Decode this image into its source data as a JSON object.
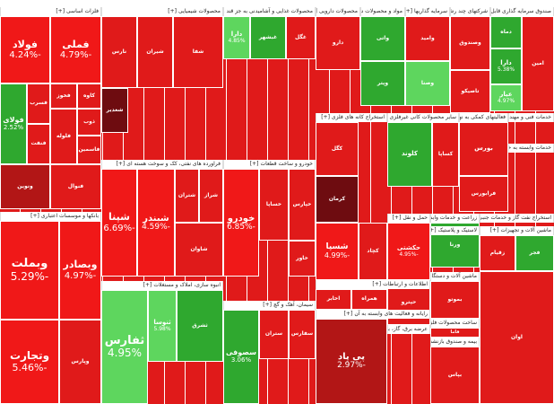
{
  "colors": {
    "strong_red": "#f01818",
    "red": "#e01a1a",
    "dark_red": "#b21616",
    "very_dark_red": "#6e0c10",
    "dark_green": "#1e6b1e",
    "green": "#2fa82f",
    "light_green": "#5ed65e"
  },
  "sectors": [
    {
      "name": "فلزات اساسی",
      "plus": "[+]"
    },
    {
      "name": "محصولات شیمیایی",
      "plus": "[+]"
    },
    {
      "name": "محصولات غذایی و آشامیدنی به جز قند و شکر",
      "plus": "[+]"
    },
    {
      "name": "محصولات دارویی",
      "plus": "[+]"
    },
    {
      "name": "مواد و محصولات دارویی",
      "plus": "[+]"
    },
    {
      "name": "سرمایه گذاریها",
      "plus": "[+]"
    },
    {
      "name": "شرکتهای چند رشته ای صنعتی",
      "plus": "[+]"
    },
    {
      "name": "صندوق سرمایه گذاری قابل معامله",
      "plus": "[+]"
    },
    {
      "name": "استخراج کانه های فلزی",
      "plus": "[+]"
    },
    {
      "name": "سایر محصولات کانی غیرفلزی",
      "plus": "[+]"
    },
    {
      "name": "فعالیتهای کمکی به نهادهای مالی واسط",
      "plus": "[+]"
    },
    {
      "name": "خدمات فنی و مهندسی",
      "plus": "[+]"
    },
    {
      "name": "خدمات وابسته به حمل و نقل",
      "plus": "[+]"
    },
    {
      "name": "فراورده های نفتی، کک و سوخت هسته ای",
      "plus": "[+]"
    },
    {
      "name": "خودرو و ساخت قطعات",
      "plus": "[+]"
    },
    {
      "name": "بانکها و موسسات اعتباری",
      "plus": "[+]"
    },
    {
      "name": "سیمان، آهک و گچ",
      "plus": "[+]"
    },
    {
      "name": "انبوه سازی، املاک و مستغلات",
      "plus": "[+]"
    },
    {
      "name": "زراعت و خدمات وابسته",
      "plus": "[+]"
    },
    {
      "name": "استخراج نفت گاز و خدمات جنبی",
      "plus": "[+]"
    },
    {
      "name": "ماشین آلات و تجهیزات",
      "plus": "[+]"
    },
    {
      "name": "لاستیک و پلاستیک",
      "plus": "[+]"
    },
    {
      "name": "ماشین آلات و دستگاه های برقی",
      "plus": "[+]"
    },
    {
      "name": "اطلاعات و ارتباطات",
      "plus": "[+]"
    },
    {
      "name": "حمل و نقل",
      "plus": "[+]"
    },
    {
      "name": "رایانه و فعالیت های وابسته به آن",
      "plus": "[+]"
    },
    {
      "name": "عرضه برق، گاز، بخار و آب گرم",
      "plus": "[+]"
    },
    {
      "name": "ساخت محصولات فلزی",
      "plus": "[+]"
    },
    {
      "name": "بیمه و صندوق بازنشستگی",
      "plus": "[+]"
    }
  ],
  "chart_data": {
    "type": "treemap",
    "title": "",
    "tiles": [
      {
        "symbol": "فولاد",
        "change": "-4.24%",
        "sector": "فلزات اساسی",
        "tone": "strong_red"
      },
      {
        "symbol": "فملی",
        "change": "-4.79%",
        "sector": "فلزات اساسی",
        "tone": "strong_red"
      },
      {
        "symbol": "فخوز",
        "change": "",
        "sector": "فلزات اساسی",
        "tone": "red"
      },
      {
        "symbol": "کاوه",
        "change": "",
        "sector": "فلزات اساسی",
        "tone": "red"
      },
      {
        "symbol": "فولای",
        "change": "2.52%",
        "sector": "فلزات اساسی",
        "tone": "green"
      },
      {
        "symbol": "فسرب",
        "change": "",
        "sector": "فلزات اساسی",
        "tone": "red"
      },
      {
        "symbol": "فنفت",
        "change": "",
        "sector": "فلزات اساسی",
        "tone": "red"
      },
      {
        "symbol": "فلوله",
        "change": "",
        "sector": "فلزات اساسی",
        "tone": "red"
      },
      {
        "symbol": "ذوب",
        "change": "",
        "sector": "فلزات اساسی",
        "tone": "red"
      },
      {
        "symbol": "فاسمین",
        "change": "",
        "sector": "فلزات اساسی",
        "tone": "red"
      },
      {
        "symbol": "فنوال",
        "change": "",
        "sector": "فلزات اساسی",
        "tone": "red"
      },
      {
        "symbol": "ونوین",
        "change": "",
        "sector": "فلزات اساسی",
        "tone": "dark_red"
      },
      {
        "symbol": "وبملت",
        "change": "-5.29%",
        "sector": "بانکها و موسسات اعتباری",
        "tone": "strong_red"
      },
      {
        "symbol": "وبصادر",
        "change": "-4.97%",
        "sector": "بانکها و موسسات اعتباری",
        "tone": "strong_red"
      },
      {
        "symbol": "وتجارت",
        "change": "-5.46%",
        "sector": "بانکها و موسسات اعتباری",
        "tone": "strong_red"
      },
      {
        "symbol": "وپارس",
        "change": "",
        "sector": "بانکها و موسسات اعتباری",
        "tone": "red"
      },
      {
        "symbol": "شپنا",
        "change": "-6.69%",
        "sector": "فراورده های نفتی، کک و سوخت هسته ای",
        "tone": "strong_red"
      },
      {
        "symbol": "شبندر",
        "change": "-4.59%",
        "sector": "فراورده های نفتی، کک و سوخت هسته ای",
        "tone": "strong_red"
      },
      {
        "symbol": "شتران",
        "change": "",
        "sector": "فراورده های نفتی، کک و سوخت هسته ای",
        "tone": "red"
      },
      {
        "symbol": "شراز",
        "change": "",
        "sector": "فراورده های نفتی، کک و سوخت هسته ای",
        "tone": "red"
      },
      {
        "symbol": "شاوان",
        "change": "",
        "sector": "فراورده های نفتی، کک و سوخت هسته ای",
        "tone": "red"
      },
      {
        "symbol": "خودرو",
        "change": "-6.85%",
        "sector": "خودرو و ساخت قطعات",
        "tone": "strong_red"
      },
      {
        "symbol": "خساپا",
        "change": "",
        "sector": "خودرو و ساخت قطعات",
        "tone": "red"
      },
      {
        "symbol": "خپارس",
        "change": "",
        "sector": "خودرو و ساخت قطعات",
        "tone": "red"
      },
      {
        "symbol": "ثفارس",
        "change": "4.95%",
        "sector": "انبوه سازی، املاک و مستغلات",
        "tone": "light_green"
      },
      {
        "symbol": "ثنوسا",
        "change": "5.98%",
        "sector": "انبوه سازی، املاک و مستغلات",
        "tone": "light_green"
      },
      {
        "symbol": "ثشرق",
        "change": "",
        "sector": "انبوه سازی، املاک و مستغلات",
        "tone": "green"
      },
      {
        "symbol": "سصوفی",
        "change": "3.06%",
        "sector": "سیمان، آهک و گچ",
        "tone": "green"
      },
      {
        "symbol": "ستران",
        "change": "",
        "sector": "سیمان، آهک و گچ",
        "tone": "red"
      },
      {
        "symbol": "سفارس",
        "change": "",
        "sector": "سیمان، آهک و گچ",
        "tone": "red"
      },
      {
        "symbol": "پی پاد",
        "change": "-2.97%",
        "sector": "رایانه و فعالیت های وابسته به آن",
        "tone": "dark_red"
      },
      {
        "symbol": "شسپا",
        "change": "-4.99%",
        "sector": "استخراج کانه های فلزی",
        "tone": "strong_red"
      },
      {
        "symbol": "کچاد",
        "change": "",
        "sector": "استخراج کانه های فلزی",
        "tone": "red"
      },
      {
        "symbol": "کگل",
        "change": "",
        "sector": "استخراج کانه های فلزی",
        "tone": "red"
      },
      {
        "symbol": "کرمان",
        "change": "",
        "sector": "استخراج کانه های فلزی",
        "tone": "very_dark_red"
      },
      {
        "symbol": "کلوند",
        "change": "",
        "sector": "سایر محصولات کانی غیرفلزی",
        "tone": "green"
      },
      {
        "symbol": "کساپا",
        "change": "",
        "sector": "سایر محصولات کانی غیرفلزی",
        "tone": "red"
      },
      {
        "symbol": "حکشتی",
        "change": "-4.95%",
        "sector": "حمل و نقل",
        "tone": "strong_red"
      },
      {
        "symbol": "بپاس",
        "change": "",
        "sector": "بیمه و صندوق بازنشستگی",
        "tone": "red"
      },
      {
        "symbol": "خاور",
        "change": "",
        "sector": "خودرو و ساخت قطعات",
        "tone": "red"
      },
      {
        "symbol": "دارا",
        "change": "4.85%",
        "sector": "محصولات غذایی و آشامیدنی به جز قند و شکر",
        "tone": "light_green"
      },
      {
        "symbol": "غبشهر",
        "change": "",
        "sector": "محصولات غذایی و آشامیدنی به جز قند و شکر",
        "tone": "green"
      },
      {
        "symbol": "غگل",
        "change": "",
        "sector": "محصولات غذایی و آشامیدنی به جز قند و شکر",
        "tone": "red"
      },
      {
        "symbol": "نارس",
        "change": "",
        "sector": "محصولات شیمیایی",
        "tone": "red"
      },
      {
        "symbol": "شیران",
        "change": "",
        "sector": "محصولات شیمیایی",
        "tone": "red"
      },
      {
        "symbol": "شفا",
        "change": "",
        "sector": "محصولات شیمیایی",
        "tone": "red"
      },
      {
        "symbol": "شغدیر",
        "change": "",
        "sector": "محصولات شیمیایی",
        "tone": "very_dark_red"
      },
      {
        "symbol": "دارو",
        "change": "",
        "sector": "مواد و محصولات دارویی",
        "tone": "red"
      },
      {
        "symbol": "واتی",
        "change": "",
        "sector": "مواد و محصولات دارویی",
        "tone": "green"
      },
      {
        "symbol": "وامید",
        "change": "",
        "sector": "سرمایه گذاریها",
        "tone": "red"
      },
      {
        "symbol": "وصنا",
        "change": "",
        "sector": "سرمایه گذاریها",
        "tone": "light_green"
      },
      {
        "symbol": "وپتر",
        "change": "",
        "sector": "سرمایه گذاریها",
        "tone": "green"
      },
      {
        "symbol": "وصندوق",
        "change": "",
        "sector": "سرمایه گذاریها",
        "tone": "red"
      },
      {
        "symbol": "دماه",
        "change": "",
        "sector": "صندوق سرمایه گذاری قابل معامله",
        "tone": "green"
      },
      {
        "symbol": "دارا",
        "change": "5.38%",
        "sector": "صندوق سرمایه گذاری قابل معامله",
        "tone": "green"
      },
      {
        "symbol": "عیار",
        "change": "4.97%",
        "sector": "صندوق سرمایه گذاری قابل معامله",
        "tone": "light_green"
      },
      {
        "symbol": "امین",
        "change": "",
        "sector": "صندوق سرمایه گذاری قابل معامله",
        "tone": "red"
      },
      {
        "symbol": "بورس",
        "change": "",
        "sector": "فعالیتهای کمکی به نهادهای مالی واسط",
        "tone": "red"
      },
      {
        "symbol": "فرابورس",
        "change": "",
        "sector": "فعالیتهای کمکی به نهادهای مالی واسط",
        "tone": "red"
      },
      {
        "symbol": "ورنا",
        "change": "",
        "sector": "زراعت و خدمات وابسته",
        "tone": "green"
      },
      {
        "symbol": "زقیام",
        "change": "",
        "sector": "زراعت و خدمات وابسته",
        "tone": "red"
      },
      {
        "symbol": "حپترو",
        "change": "",
        "sector": "حمل و نقل",
        "tone": "red"
      },
      {
        "symbol": "اخابر",
        "change": "",
        "sector": "اطلاعات و ارتباطات",
        "tone": "red"
      },
      {
        "symbol": "همراه",
        "change": "",
        "sector": "اطلاعات و ارتباطات",
        "tone": "red"
      },
      {
        "symbol": "فاما",
        "change": "",
        "sector": "ساخت محصولات فلزی",
        "tone": "red"
      },
      {
        "symbol": "بموتو",
        "change": "",
        "sector": "ماشین آلات و دستگاه های برقی",
        "tone": "red"
      },
      {
        "symbol": "پکرمان",
        "change": "",
        "sector": "لاستیک و پلاستیک",
        "tone": "red"
      },
      {
        "symbol": "فجر",
        "change": "",
        "sector": "بیمه و صندوق بازنشستگی",
        "tone": "green"
      },
      {
        "symbol": "تاصیکو",
        "change": "",
        "sector": "شرکتهای چند رشته ای صنعتی",
        "tone": "red"
      },
      {
        "symbol": "اوان",
        "change": "",
        "sector": "استخراج نفت گاز و خدمات جنبی",
        "tone": "red"
      }
    ]
  }
}
